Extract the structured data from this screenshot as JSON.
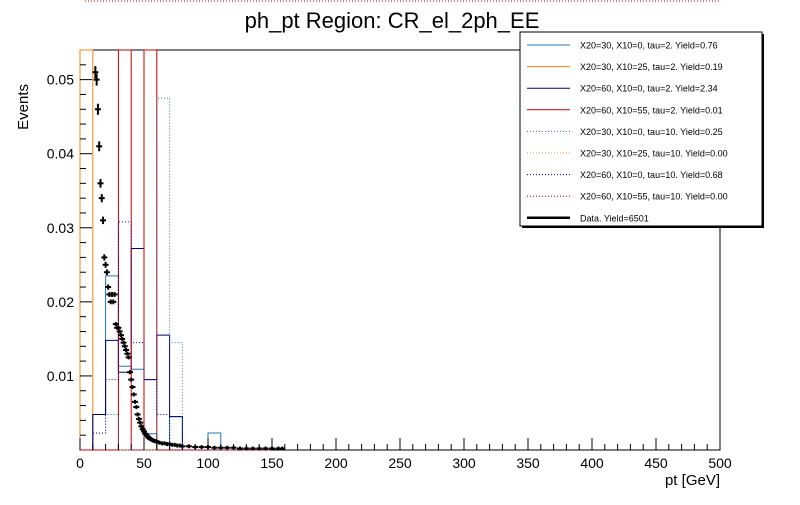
{
  "chart_data": {
    "type": "histogram",
    "title": "ph_pt Region: CR_el_2ph_EE",
    "xlabel": "pt [GeV]",
    "ylabel": "Events",
    "xlim": [
      0,
      500
    ],
    "ylim": [
      0,
      0.054
    ],
    "x_ticks": [
      0,
      50,
      100,
      150,
      200,
      250,
      300,
      350,
      400,
      450,
      500
    ],
    "x_tick_labels": [
      "0",
      "50",
      "100",
      "150",
      "200",
      "250",
      "300",
      "350",
      "400",
      "450",
      "500"
    ],
    "y_ticks": [
      0.01,
      0.02,
      0.03,
      0.04,
      0.05
    ],
    "y_tick_labels": [
      "0.01",
      "0.02",
      "0.03",
      "0.04",
      "0.05"
    ],
    "bin_width": 10,
    "bin_edges_start": 0,
    "legend_position": "top-right",
    "series": [
      {
        "name": "X20=30, X10=0, tau=2. Yield=0.76",
        "color": "#1f77b4",
        "style": "solid",
        "values": [
          0,
          0.0048,
          0.0235,
          0.0113,
          0.0109,
          0.0022,
          0,
          0.0045,
          0,
          0,
          0.0023,
          0,
          0,
          0,
          0
        ]
      },
      {
        "name": "X20=30, X10=25, tau=2. Yield=0.19",
        "color": "#ff7f0e",
        "style": "solid",
        "values": [
          0.055,
          0,
          0,
          0,
          0,
          0,
          0,
          0,
          0,
          0,
          0,
          0,
          0,
          0,
          0
        ]
      },
      {
        "name": "X20=60, X10=0, tau=2. Yield=2.34",
        "color": "#000080",
        "style": "solid",
        "values": [
          0,
          0.0048,
          0.0148,
          0.0105,
          0.0272,
          0.0095,
          0.0155,
          0.0045,
          0,
          0,
          0,
          0,
          0,
          0,
          0
        ]
      },
      {
        "name": "X20=60, X10=55, tau=2. Yield=0.01",
        "color": "#cc0000",
        "style": "solid",
        "values": [
          0,
          0,
          0,
          0.055,
          0,
          0.055,
          0,
          0,
          0,
          0,
          0,
          0,
          0,
          0,
          0
        ]
      },
      {
        "name": "X20=30, X10=0, tau=10. Yield=0.25",
        "color": "#1f77b4",
        "style": "dotted",
        "values": [
          0,
          0.0023,
          0.0048,
          0,
          0,
          0,
          0.0475,
          0.0145,
          0,
          0,
          0,
          0,
          0,
          0,
          0
        ]
      },
      {
        "name": "X20=30, X10=25, tau=10. Yield=0.00",
        "color": "#ff7f0e",
        "style": "dotted",
        "values": [
          0,
          0,
          0,
          0,
          0,
          0,
          0,
          0,
          0,
          0,
          0,
          0,
          0,
          0,
          0
        ]
      },
      {
        "name": "X20=60, X10=0, tau=10. Yield=0.68",
        "color": "#000080",
        "style": "dotted",
        "values": [
          0,
          0.0023,
          0.0095,
          0.0308,
          0.0145,
          0.0095,
          0.0048,
          0,
          0,
          0,
          0,
          0,
          0,
          0,
          0
        ]
      },
      {
        "name": "X20=60, X10=55, tau=10. Yield=0.00",
        "color": "#cc0000",
        "style": "dotted",
        "values": [
          0,
          0,
          0,
          0,
          0,
          0,
          0,
          0,
          0,
          0,
          0,
          0,
          0,
          0,
          0
        ]
      }
    ],
    "data_series": {
      "name": "Data. Yield=6501",
      "color": "#000000",
      "x": [
        12,
        13,
        14,
        15,
        16,
        17,
        18,
        19,
        20,
        21,
        22,
        23,
        24,
        25,
        26,
        27,
        28,
        29,
        30,
        31,
        32,
        33,
        34,
        35,
        36,
        37,
        38,
        39,
        40,
        41,
        42,
        43,
        44,
        45,
        46,
        47,
        48,
        49,
        50,
        51,
        52,
        53,
        54,
        55,
        56,
        57,
        58,
        59,
        60,
        62,
        64,
        66,
        68,
        70,
        72,
        74,
        76,
        78,
        80,
        85,
        90,
        95,
        100,
        105,
        110,
        115,
        120,
        125,
        130,
        135,
        140,
        145,
        150,
        155,
        158
      ],
      "y": [
        0.051,
        0.05,
        0.046,
        0.041,
        0.036,
        0.034,
        0.031,
        0.026,
        0.025,
        0.024,
        0.022,
        0.021,
        0.02,
        0.021,
        0.02,
        0.021,
        0.017,
        0.0165,
        0.0165,
        0.016,
        0.0155,
        0.015,
        0.0145,
        0.014,
        0.0135,
        0.013,
        0.0125,
        0.0105,
        0.0095,
        0.0085,
        0.0075,
        0.0065,
        0.0058,
        0.0048,
        0.0042,
        0.0037,
        0.0032,
        0.0028,
        0.0025,
        0.0022,
        0.002,
        0.0018,
        0.0016,
        0.0015,
        0.0014,
        0.0013,
        0.0012,
        0.0012,
        0.0011,
        0.001,
        0.0009,
        0.0009,
        0.0008,
        0.0008,
        0.0007,
        0.0007,
        0.0006,
        0.0006,
        0.0005,
        0.0005,
        0.0004,
        0.0004,
        0.0004,
        0.0003,
        0.0003,
        0.0003,
        0.0003,
        0.0002,
        0.0002,
        0.0002,
        0.0002,
        0.0002,
        0.0002,
        0.0002,
        0.0002
      ]
    }
  }
}
